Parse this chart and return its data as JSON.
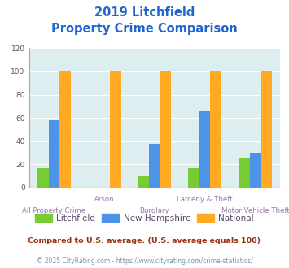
{
  "title_line1": "2019 Litchfield",
  "title_line2": "Property Crime Comparison",
  "categories": [
    "All Property Crime",
    "Arson",
    "Burglary",
    "Larceny & Theft",
    "Motor Vehicle Theft"
  ],
  "litchfield": [
    17,
    0,
    10,
    17,
    26
  ],
  "new_hampshire": [
    58,
    0,
    38,
    66,
    30
  ],
  "national": [
    100,
    100,
    100,
    100,
    100
  ],
  "color_litchfield": "#77cc33",
  "color_nh": "#4d94e8",
  "color_national": "#ffaa22",
  "ylim": [
    0,
    120
  ],
  "yticks": [
    0,
    20,
    40,
    60,
    80,
    100,
    120
  ],
  "bg_color": "#ddeef0",
  "legend_labels": [
    "Litchfield",
    "New Hampshire",
    "National"
  ],
  "footnote1": "Compared to U.S. average. (U.S. average equals 100)",
  "footnote2": "© 2025 CityRating.com - https://www.cityrating.com/crime-statistics/",
  "title_color": "#2266cc",
  "xlabel_color": "#9977aa",
  "footnote1_color": "#993311",
  "footnote2_color": "#7799aa",
  "legend_text_color": "#554466"
}
